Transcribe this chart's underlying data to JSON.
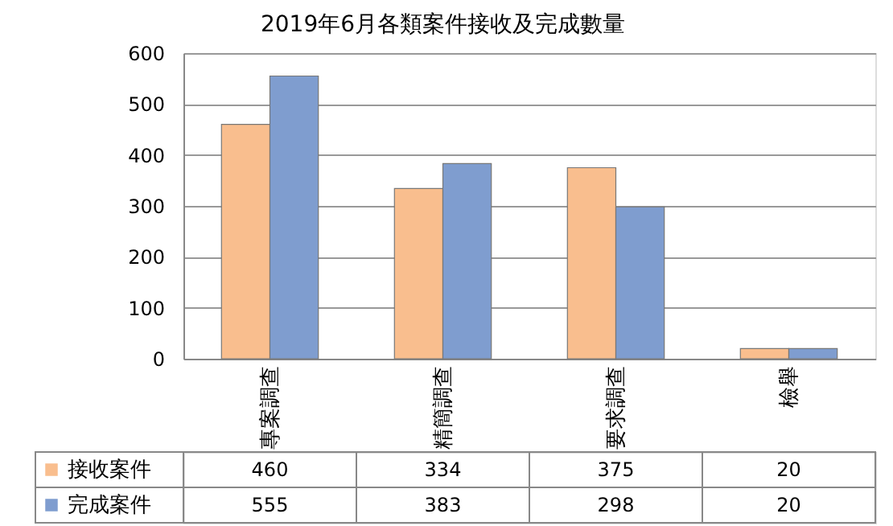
{
  "chart_data": {
    "type": "bar",
    "title": "2019年6月各類案件接收及完成數量",
    "categories": [
      "專案調查",
      "精簡調查",
      "要求調查",
      "檢舉"
    ],
    "series": [
      {
        "name": "接收案件",
        "color": "#f9be8e",
        "values": [
          460,
          334,
          375,
          20
        ]
      },
      {
        "name": "完成案件",
        "color": "#7f9dcf",
        "values": [
          555,
          383,
          298,
          20
        ]
      }
    ],
    "ylim": [
      0,
      600
    ],
    "yticks": [
      0,
      100,
      200,
      300,
      400,
      500,
      600
    ],
    "grid": "y",
    "legend": "bottom",
    "data_labels": true
  }
}
